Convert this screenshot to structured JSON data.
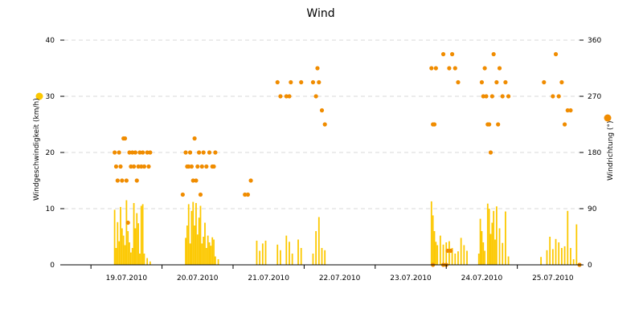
{
  "chart_data": {
    "type": "bar+scatter",
    "title": "Wind",
    "x_axis": {
      "range": [
        "2010-07-18T15:00",
        "2010-07-25T21:00"
      ],
      "tick_labels": [
        "19.07.2010",
        "20.07.2010",
        "21.07.2010",
        "22.07.2010",
        "23.07.2010",
        "24.07.2010",
        "25.07.2010"
      ]
    },
    "y_left": {
      "label": "Windgeschwindigkeit (km/h)",
      "ylim": [
        0,
        40
      ],
      "ticks": [
        0,
        10,
        20,
        30,
        40
      ]
    },
    "y_right": {
      "label": "Windrichtung (°)",
      "ylim": [
        0,
        360
      ],
      "ticks": [
        0,
        90,
        180,
        270,
        360
      ]
    },
    "grid": true,
    "colors": {
      "speed": "#fcc800",
      "direction": "#f08c00"
    },
    "series": [
      {
        "name": "Windgeschwindigkeit (km/h)",
        "type": "bar",
        "axis": "left",
        "points": [
          [
            "2010-07-19T08:00",
            9.8
          ],
          [
            "2010-07-19T08:30",
            3.0
          ],
          [
            "2010-07-19T09:00",
            7.6
          ],
          [
            "2010-07-19T09:30",
            4.2
          ],
          [
            "2010-07-19T10:00",
            10.3
          ],
          [
            "2010-07-19T10:30",
            6.5
          ],
          [
            "2010-07-19T11:00",
            5.2
          ],
          [
            "2010-07-19T11:30",
            3.5
          ],
          [
            "2010-07-19T12:00",
            11.5
          ],
          [
            "2010-07-19T12:30",
            6.0
          ],
          [
            "2010-07-19T13:00",
            4.0
          ],
          [
            "2010-07-19T13:30",
            2.2
          ],
          [
            "2010-07-19T14:00",
            3.0
          ],
          [
            "2010-07-19T14:30",
            11.0
          ],
          [
            "2010-07-19T15:00",
            6.5
          ],
          [
            "2010-07-19T15:30",
            9.2
          ],
          [
            "2010-07-19T16:00",
            7.4
          ],
          [
            "2010-07-19T16:30",
            2.0
          ],
          [
            "2010-07-19T17:00",
            10.5
          ],
          [
            "2010-07-19T17:30",
            10.8
          ],
          [
            "2010-07-19T18:00",
            2.0
          ],
          [
            "2010-07-19T19:00",
            1.2
          ],
          [
            "2010-07-19T20:00",
            0.6
          ],
          [
            "2010-07-20T08:00",
            4.8
          ],
          [
            "2010-07-20T08:30",
            7.0
          ],
          [
            "2010-07-20T09:00",
            10.8
          ],
          [
            "2010-07-20T09:30",
            3.8
          ],
          [
            "2010-07-20T10:00",
            9.6
          ],
          [
            "2010-07-20T10:30",
            11.2
          ],
          [
            "2010-07-20T11:00",
            7.0
          ],
          [
            "2010-07-20T11:30",
            11.0
          ],
          [
            "2010-07-20T12:00",
            5.4
          ],
          [
            "2010-07-20T12:30",
            8.4
          ],
          [
            "2010-07-20T13:00",
            10.5
          ],
          [
            "2010-07-20T13:30",
            3.8
          ],
          [
            "2010-07-20T14:00",
            5.0
          ],
          [
            "2010-07-20T14:30",
            7.5
          ],
          [
            "2010-07-20T15:00",
            3.0
          ],
          [
            "2010-07-20T15:30",
            5.2
          ],
          [
            "2010-07-20T16:00",
            4.0
          ],
          [
            "2010-07-20T16:30",
            3.4
          ],
          [
            "2010-07-20T17:00",
            4.9
          ],
          [
            "2010-07-20T17:30",
            4.5
          ],
          [
            "2010-07-20T18:00",
            1.5
          ],
          [
            "2010-07-20T19:00",
            1.0
          ],
          [
            "2010-07-21T08:00",
            4.3
          ],
          [
            "2010-07-21T09:00",
            2.5
          ],
          [
            "2010-07-21T10:00",
            3.8
          ],
          [
            "2010-07-21T11:00",
            4.3
          ],
          [
            "2010-07-21T15:00",
            3.6
          ],
          [
            "2010-07-21T16:00",
            2.6
          ],
          [
            "2010-07-21T18:00",
            5.2
          ],
          [
            "2010-07-21T19:00",
            4.1
          ],
          [
            "2010-07-21T20:00",
            2.0
          ],
          [
            "2010-07-21T22:00",
            4.5
          ],
          [
            "2010-07-21T23:00",
            3.0
          ],
          [
            "2010-07-22T03:00",
            2.0
          ],
          [
            "2010-07-22T04:00",
            6.0
          ],
          [
            "2010-07-22T05:00",
            8.5
          ],
          [
            "2010-07-22T06:00",
            3.0
          ],
          [
            "2010-07-22T07:00",
            2.6
          ],
          [
            "2010-07-23T19:00",
            11.3
          ],
          [
            "2010-07-23T19:30",
            8.8
          ],
          [
            "2010-07-23T20:00",
            6.0
          ],
          [
            "2010-07-23T20:30",
            4.1
          ],
          [
            "2010-07-23T21:00",
            3.5
          ],
          [
            "2010-07-23T22:00",
            5.2
          ],
          [
            "2010-07-23T23:00",
            3.6
          ],
          [
            "2010-07-24T00:00",
            4.0
          ],
          [
            "2010-07-24T01:00",
            4.2
          ],
          [
            "2010-07-24T02:00",
            3.0
          ],
          [
            "2010-07-24T03:00",
            2.0
          ],
          [
            "2010-07-24T04:00",
            2.4
          ],
          [
            "2010-07-24T05:00",
            4.8
          ],
          [
            "2010-07-24T06:00",
            3.5
          ],
          [
            "2010-07-24T07:00",
            2.5
          ],
          [
            "2010-07-24T11:00",
            2.0
          ],
          [
            "2010-07-24T11:30",
            8.2
          ],
          [
            "2010-07-24T12:00",
            6.0
          ],
          [
            "2010-07-24T12:30",
            4.0
          ],
          [
            "2010-07-24T13:00",
            2.5
          ],
          [
            "2010-07-24T14:00",
            10.9
          ],
          [
            "2010-07-24T14:30",
            10.0
          ],
          [
            "2010-07-24T15:00",
            5.5
          ],
          [
            "2010-07-24T15:30",
            7.5
          ],
          [
            "2010-07-24T16:00",
            9.6
          ],
          [
            "2010-07-24T16:30",
            4.5
          ],
          [
            "2010-07-24T17:00",
            10.4
          ],
          [
            "2010-07-24T18:00",
            6.5
          ],
          [
            "2010-07-24T19:00",
            3.9
          ],
          [
            "2010-07-24T20:00",
            9.5
          ],
          [
            "2010-07-24T21:00",
            1.5
          ],
          [
            "2010-07-25T08:00",
            1.4
          ],
          [
            "2010-07-25T10:00",
            2.6
          ],
          [
            "2010-07-25T11:00",
            5.0
          ],
          [
            "2010-07-25T12:00",
            2.8
          ],
          [
            "2010-07-25T13:00",
            4.6
          ],
          [
            "2010-07-25T14:00",
            4.0
          ],
          [
            "2010-07-25T15:00",
            3.0
          ],
          [
            "2010-07-25T16:00",
            3.3
          ],
          [
            "2010-07-25T17:00",
            9.6
          ],
          [
            "2010-07-25T18:00",
            3.0
          ],
          [
            "2010-07-25T19:00",
            1.0
          ],
          [
            "2010-07-25T20:00",
            7.2
          ]
        ]
      },
      {
        "name": "Windrichtung (°)",
        "type": "scatter",
        "axis": "right",
        "points": [
          [
            "2010-07-19T08:00",
            180
          ],
          [
            "2010-07-19T08:30",
            157.5
          ],
          [
            "2010-07-19T09:00",
            135
          ],
          [
            "2010-07-19T09:30",
            180
          ],
          [
            "2010-07-19T10:00",
            157.5
          ],
          [
            "2010-07-19T10:30",
            135
          ],
          [
            "2010-07-19T11:00",
            202.5
          ],
          [
            "2010-07-19T11:30",
            202.5
          ],
          [
            "2010-07-19T12:00",
            135
          ],
          [
            "2010-07-19T12:30",
            67.5
          ],
          [
            "2010-07-19T13:00",
            180
          ],
          [
            "2010-07-19T13:30",
            157.5
          ],
          [
            "2010-07-19T14:00",
            180
          ],
          [
            "2010-07-19T14:30",
            157.5
          ],
          [
            "2010-07-19T15:00",
            180
          ],
          [
            "2010-07-19T15:30",
            135
          ],
          [
            "2010-07-19T16:00",
            157.5
          ],
          [
            "2010-07-19T16:30",
            180
          ],
          [
            "2010-07-19T17:00",
            157.5
          ],
          [
            "2010-07-19T17:30",
            180
          ],
          [
            "2010-07-19T18:00",
            157.5
          ],
          [
            "2010-07-19T19:00",
            180
          ],
          [
            "2010-07-19T19:30",
            157.5
          ],
          [
            "2010-07-19T20:00",
            180
          ],
          [
            "2010-07-20T07:00",
            112.5
          ],
          [
            "2010-07-20T08:00",
            180
          ],
          [
            "2010-07-20T08:30",
            157.5
          ],
          [
            "2010-07-20T09:00",
            157.5
          ],
          [
            "2010-07-20T09:30",
            180
          ],
          [
            "2010-07-20T10:00",
            157.5
          ],
          [
            "2010-07-20T10:30",
            135
          ],
          [
            "2010-07-20T11:00",
            202.5
          ],
          [
            "2010-07-20T11:30",
            135
          ],
          [
            "2010-07-20T12:00",
            157.5
          ],
          [
            "2010-07-20T12:30",
            180
          ],
          [
            "2010-07-20T13:00",
            112.5
          ],
          [
            "2010-07-20T13:30",
            157.5
          ],
          [
            "2010-07-20T14:00",
            180
          ],
          [
            "2010-07-20T15:00",
            157.5
          ],
          [
            "2010-07-20T16:00",
            180
          ],
          [
            "2010-07-20T17:00",
            157.5
          ],
          [
            "2010-07-20T17:30",
            157.5
          ],
          [
            "2010-07-20T18:00",
            180
          ],
          [
            "2010-07-21T04:00",
            112.5
          ],
          [
            "2010-07-21T05:00",
            112.5
          ],
          [
            "2010-07-21T06:00",
            135
          ],
          [
            "2010-07-21T15:00",
            292.5
          ],
          [
            "2010-07-21T16:00",
            270
          ],
          [
            "2010-07-21T18:00",
            270
          ],
          [
            "2010-07-21T19:00",
            270
          ],
          [
            "2010-07-21T19:30",
            292.5
          ],
          [
            "2010-07-21T23:00",
            292.5
          ],
          [
            "2010-07-22T03:00",
            292.5
          ],
          [
            "2010-07-22T04:00",
            270
          ],
          [
            "2010-07-22T04:30",
            315
          ],
          [
            "2010-07-22T05:00",
            292.5
          ],
          [
            "2010-07-22T06:00",
            247.5
          ],
          [
            "2010-07-22T07:00",
            225
          ],
          [
            "2010-07-23T19:00",
            315
          ],
          [
            "2010-07-23T19:30",
            225
          ],
          [
            "2010-07-23T20:00",
            225
          ],
          [
            "2010-07-23T20:30",
            315
          ],
          [
            "2010-07-23T23:00",
            337.5
          ],
          [
            "2010-07-24T01:00",
            315
          ],
          [
            "2010-07-24T02:00",
            337.5
          ],
          [
            "2010-07-24T03:00",
            315
          ],
          [
            "2010-07-24T04:00",
            292.5
          ],
          [
            "2010-07-24T12:00",
            292.5
          ],
          [
            "2010-07-24T12:30",
            270
          ],
          [
            "2010-07-24T13:00",
            315
          ],
          [
            "2010-07-24T13:30",
            270
          ],
          [
            "2010-07-24T14:00",
            225
          ],
          [
            "2010-07-24T14:30",
            225
          ],
          [
            "2010-07-24T15:00",
            180
          ],
          [
            "2010-07-24T15:30",
            270
          ],
          [
            "2010-07-24T16:00",
            337.5
          ],
          [
            "2010-07-24T17:00",
            292.5
          ],
          [
            "2010-07-24T17:30",
            225
          ],
          [
            "2010-07-24T18:00",
            315
          ],
          [
            "2010-07-24T19:00",
            270
          ],
          [
            "2010-07-24T20:00",
            292.5
          ],
          [
            "2010-07-24T21:00",
            270
          ],
          [
            "2010-07-25T09:00",
            292.5
          ],
          [
            "2010-07-25T12:00",
            270
          ],
          [
            "2010-07-25T13:00",
            337.5
          ],
          [
            "2010-07-25T14:00",
            270
          ],
          [
            "2010-07-25T15:00",
            292.5
          ],
          [
            "2010-07-25T16:00",
            225
          ],
          [
            "2010-07-25T17:00",
            247.5
          ],
          [
            "2010-07-25T18:00",
            247.5
          ],
          [
            "2010-07-23T19:30",
            0
          ],
          [
            "2010-07-23T23:00",
            0
          ],
          [
            "2010-07-24T00:00",
            0
          ],
          [
            "2010-07-24T00:30",
            22.5
          ],
          [
            "2010-07-24T01:30",
            22.5
          ],
          [
            "2010-07-25T21:00",
            0
          ]
        ]
      }
    ],
    "legend": [
      {
        "name": "Windgeschwindigkeit (km/h)",
        "marker": "circle",
        "color": "#fcc800"
      },
      {
        "name": "Windrichtung (°)",
        "marker": "circle",
        "color": "#f08c00"
      }
    ]
  }
}
